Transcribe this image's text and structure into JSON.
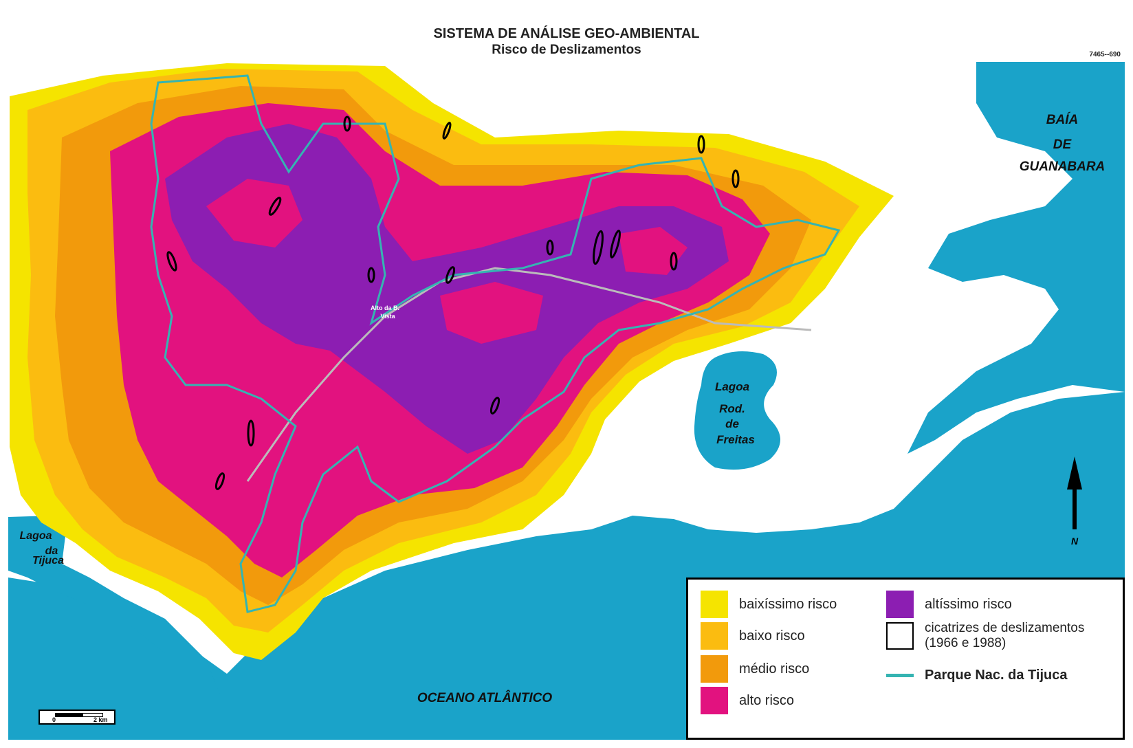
{
  "header": {
    "title": "SISTEMA DE ANÁLISE GEO-AMBIENTAL",
    "subtitle": "Risco de Deslizamentos",
    "code": "7465--690"
  },
  "map": {
    "water_labels": {
      "bay_line1": "BAÍA",
      "bay_line2": "DE",
      "bay_line3": "GUANABARA",
      "lagoa_rod_1": "Lagoa",
      "lagoa_rod_2": "Rod.",
      "lagoa_rod_3": "de",
      "lagoa_rod_4": "Freitas",
      "lagoa_tij_1": "Lagoa",
      "lagoa_tij_2": "da",
      "lagoa_tij_3": "Tijuca",
      "ocean": "OCEANO ATLÂNTICO"
    },
    "place_labels": {
      "alto_1": "Alto da B.",
      "alto_2": "Vista"
    },
    "north": "N",
    "scale": {
      "start": "0",
      "end": "2 km"
    },
    "colors": {
      "water": "#1aa3c9",
      "land": "#ffffff",
      "very_low": "#f5e400",
      "low": "#fbbc10",
      "medium": "#f29a0c",
      "high": "#e2127f",
      "very_high": "#8c1eb2",
      "park_boundary": "#35b4b2",
      "scars": "#000000"
    }
  },
  "legend": {
    "items": [
      {
        "label": "baixíssimo risco",
        "color": "#f5e400"
      },
      {
        "label": "baixo risco",
        "color": "#fbbc10"
      },
      {
        "label": "médio risco",
        "color": "#f29a0c"
      },
      {
        "label": "alto risco",
        "color": "#e2127f"
      },
      {
        "label": "altíssimo risco",
        "color": "#8c1eb2"
      }
    ],
    "scars_line1": "cicatrizes de deslizamentos",
    "scars_line2": "(1966 e 1988)",
    "park_label": "Parque Nac. da Tijuca"
  }
}
